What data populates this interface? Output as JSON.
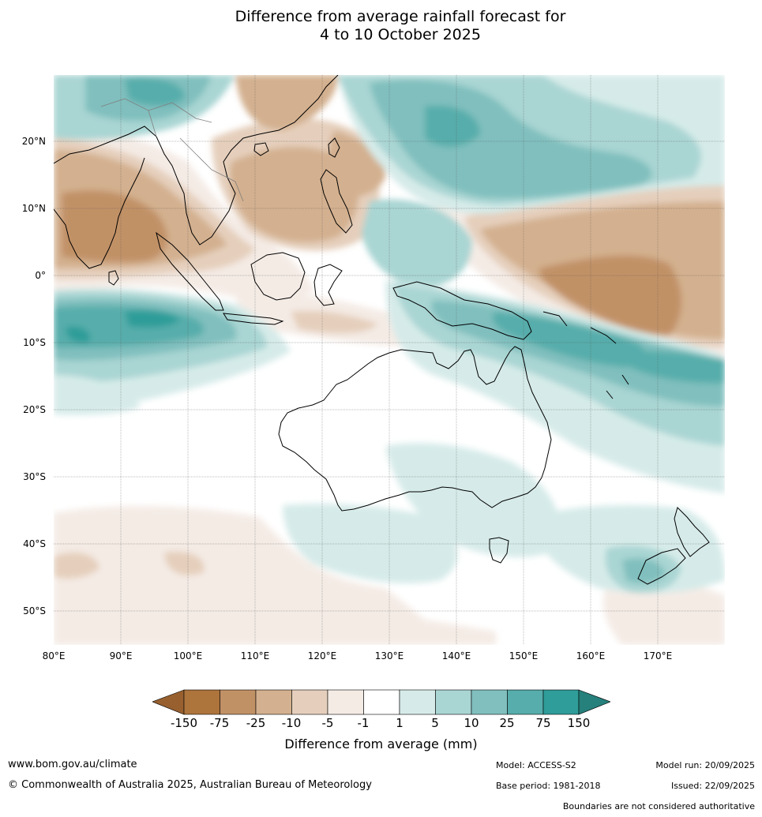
{
  "title": {
    "line1": "Difference from average rainfall forecast for",
    "line2": "4 to 10 October 2025"
  },
  "map": {
    "latitude_labels": [
      "20°N",
      "10°N",
      "0°",
      "10°S",
      "20°S",
      "30°S",
      "40°S",
      "50°S"
    ],
    "longitude_labels": [
      "80°E",
      "90°E",
      "100°E",
      "110°E",
      "120°E",
      "130°E",
      "140°E",
      "150°E",
      "160°E",
      "170°E"
    ],
    "lat_range_deg": [
      -55,
      30
    ],
    "lon_range_deg": [
      80,
      180
    ]
  },
  "legend": {
    "title": "Difference from average (mm)",
    "ticks": [
      "-150",
      "-75",
      "-25",
      "-10",
      "-5",
      "-1",
      "1",
      "5",
      "10",
      "25",
      "75",
      "150"
    ],
    "colors": [
      "#98602f",
      "#ad743c",
      "#c19166",
      "#d3b08f",
      "#e5cfbc",
      "#f4ebe5",
      "#ffffff",
      "#d6ebe9",
      "#a9d5d3",
      "#80bfbe",
      "#56adab",
      "#2f9d99",
      "#26807c"
    ]
  },
  "footer": {
    "website": "www.bom.gov.au/climate",
    "copyright": "© Commonwealth of Australia 2025, Australian Bureau of Meteorology",
    "model": "Model: ACCESS-S2",
    "base_period": "Base period: 1981-2018",
    "model_run": "Model run: 20/09/2025",
    "issued": "Issued: 22/09/2025",
    "disclaimer": "Boundaries are not considered authoritative"
  }
}
